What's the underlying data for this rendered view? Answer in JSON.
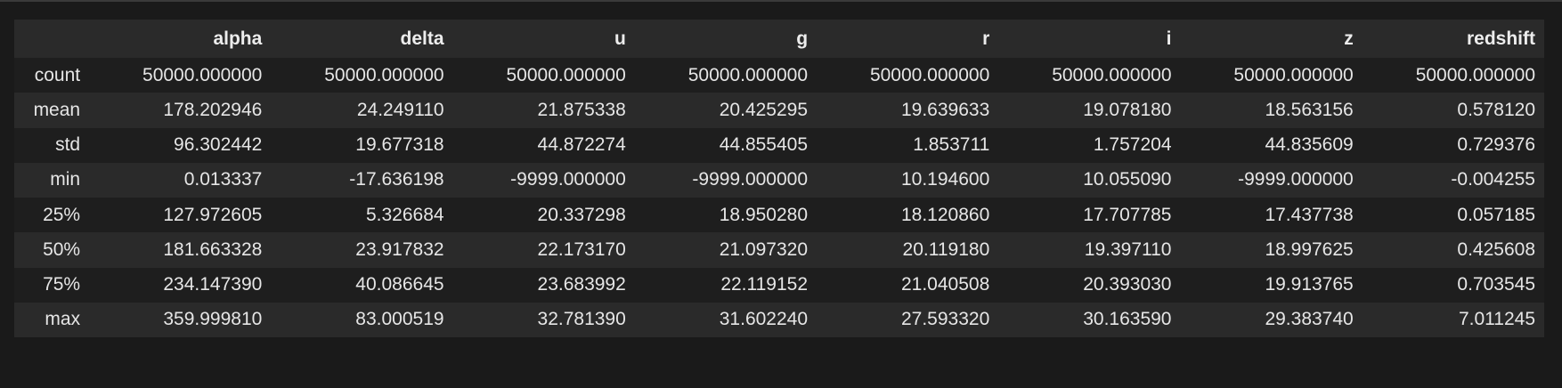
{
  "table": {
    "index_header": "",
    "columns": [
      "alpha",
      "delta",
      "u",
      "g",
      "r",
      "i",
      "z",
      "redshift"
    ],
    "rows": [
      {
        "index": "count",
        "values": [
          "50000.000000",
          "50000.000000",
          "50000.000000",
          "50000.000000",
          "50000.000000",
          "50000.000000",
          "50000.000000",
          "50000.000000"
        ]
      },
      {
        "index": "mean",
        "values": [
          "178.202946",
          "24.249110",
          "21.875338",
          "20.425295",
          "19.639633",
          "19.078180",
          "18.563156",
          "0.578120"
        ]
      },
      {
        "index": "std",
        "values": [
          "96.302442",
          "19.677318",
          "44.872274",
          "44.855405",
          "1.853711",
          "1.757204",
          "44.835609",
          "0.729376"
        ]
      },
      {
        "index": "min",
        "values": [
          "0.013337",
          "-17.636198",
          "-9999.000000",
          "-9999.000000",
          "10.194600",
          "10.055090",
          "-9999.000000",
          "-0.004255"
        ]
      },
      {
        "index": "25%",
        "values": [
          "127.972605",
          "5.326684",
          "20.337298",
          "18.950280",
          "18.120860",
          "17.707785",
          "17.437738",
          "0.057185"
        ]
      },
      {
        "index": "50%",
        "values": [
          "181.663328",
          "23.917832",
          "22.173170",
          "21.097320",
          "20.119180",
          "19.397110",
          "18.997625",
          "0.425608"
        ]
      },
      {
        "index": "75%",
        "values": [
          "234.147390",
          "40.086645",
          "23.683992",
          "22.119152",
          "21.040508",
          "20.393030",
          "19.913765",
          "0.703545"
        ]
      },
      {
        "index": "max",
        "values": [
          "359.999810",
          "83.000519",
          "32.781390",
          "31.602240",
          "27.593320",
          "30.163590",
          "29.383740",
          "7.011245"
        ]
      }
    ]
  }
}
